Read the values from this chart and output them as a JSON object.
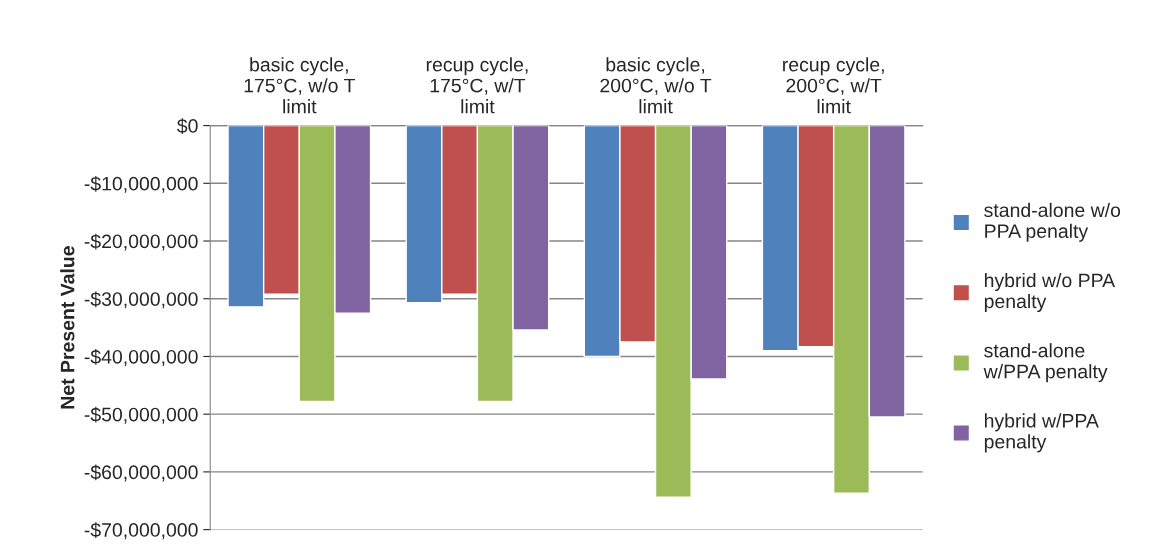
{
  "chart_data": {
    "type": "bar",
    "ylabel": "Net Present Value",
    "categories": [
      "basic cycle,\n175°C, w/o T\nlimit",
      "recup cycle,\n175°C, w/T\nlimit",
      "basic cycle,\n200°C, w/o T\nlimit",
      "recup cycle,\n200°C, w/T\nlimit"
    ],
    "series": [
      {
        "name": "stand-alone w/o\nPPA penalty",
        "color": "#4f81bd",
        "values": [
          -31400000,
          -30700000,
          -40000000,
          -39000000
        ]
      },
      {
        "name": "hybrid w/o PPA\npenalty",
        "color": "#c0504d",
        "values": [
          -29200000,
          -29200000,
          -37500000,
          -38300000
        ]
      },
      {
        "name": "stand-alone\nw/PPA penalty",
        "color": "#9bbb59",
        "values": [
          -47800000,
          -47800000,
          -64400000,
          -63700000
        ]
      },
      {
        "name": "hybrid w/PPA\npenalty",
        "color": "#8064a2",
        "values": [
          -32500000,
          -35400000,
          -43900000,
          -50500000
        ]
      }
    ],
    "ylim": [
      -70000000,
      0
    ],
    "yticks": [
      {
        "value": -70000000,
        "label": "-$70,000,000"
      },
      {
        "value": -60000000,
        "label": "-$60,000,000"
      },
      {
        "value": -50000000,
        "label": "-$50,000,000"
      },
      {
        "value": -40000000,
        "label": "-$40,000,000"
      },
      {
        "value": -30000000,
        "label": "-$30,000,000"
      },
      {
        "value": -20000000,
        "label": "-$20,000,000"
      },
      {
        "value": -10000000,
        "label": "-$10,000,000"
      },
      {
        "value": 0,
        "label": "$0"
      }
    ],
    "grid": "y",
    "legend": "right"
  }
}
